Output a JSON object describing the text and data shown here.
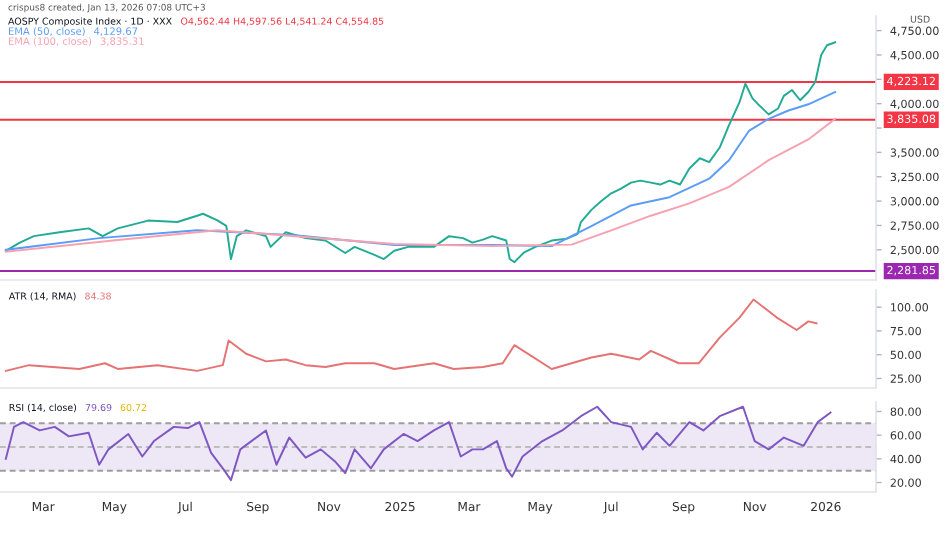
{
  "chart_data": [
    {
      "type": "line",
      "title": "AOSPY Composite Index · 1D · XXX",
      "ylabel": "USD",
      "annotations": [
        "crispus8 created, Jan 13, 2026 07:08 UTC+3",
        "O4,562.44 H4,597.56 L4,541.24 C4,554.85",
        "4,129.67",
        "3,835.31"
      ],
      "xlim": [
        "2024-01-24",
        "2026-02-13"
      ],
      "ylim": [
        2190,
        4900
      ],
      "yticks": [
        {
          "value": 2500,
          "label": "2,500.00"
        },
        {
          "value": 2750,
          "label": "2,750.00"
        },
        {
          "value": 3000,
          "label": "3,000.00"
        },
        {
          "value": 3250,
          "label": "3,250.00"
        },
        {
          "value": 3500,
          "label": "3,500.00"
        },
        {
          "value": 3750,
          "label": null
        },
        {
          "value": 4000,
          "label": "4,000.00"
        },
        {
          "value": 4250,
          "label": null
        },
        {
          "value": 4500,
          "label": "4,500.00"
        },
        {
          "value": 4750,
          "label": "4,750.00"
        }
      ],
      "tick_labels": "y",
      "grid": false,
      "legend": false,
      "ref_lines": [
        {
          "axis": "y",
          "value": 4223.12,
          "label": "4,223.12",
          "color": "#f23645"
        },
        {
          "axis": "y",
          "value": 3835.08,
          "label": "3,835.08",
          "color": "#f23645"
        },
        {
          "axis": "y",
          "value": 2281.85,
          "label": "2,281.85",
          "color": "#9c27b0"
        }
      ],
      "series": [
        {
          "color": "#22ab94",
          "x": [
            "2024-01-29",
            "2024-02-10",
            "2024-02-22",
            "2024-03-15",
            "2024-04-09",
            "2024-04-21",
            "2024-05-04",
            "2024-05-30",
            "2024-06-24",
            "2024-07-11",
            "2024-07-16",
            "2024-07-28",
            "2024-08-05",
            "2024-08-09",
            "2024-08-14",
            "2024-08-22",
            "2024-09-08",
            "2024-09-12",
            "2024-09-25",
            "2024-10-12",
            "2024-10-29",
            "2024-11-15",
            "2024-11-23",
            "2024-12-10",
            "2024-12-18",
            "2024-12-27",
            "2025-01-08",
            "2025-01-18",
            "2025-01-30",
            "2025-02-12",
            "2025-02-24",
            "2025-03-04",
            "2025-03-13",
            "2025-03-21",
            "2025-04-02",
            "2025-04-05",
            "2025-04-09",
            "2025-04-17",
            "2025-04-27",
            "2025-05-11",
            "2025-05-24",
            "2025-06-02",
            "2025-06-05",
            "2025-06-14",
            "2025-06-22",
            "2025-07-01",
            "2025-07-09",
            "2025-07-18",
            "2025-07-26",
            "2025-08-04",
            "2025-08-12",
            "2025-08-20",
            "2025-08-29",
            "2025-09-06",
            "2025-09-15",
            "2025-09-23",
            "2025-10-02",
            "2025-10-10",
            "2025-10-19",
            "2025-10-24",
            "2025-10-30",
            "2025-11-04",
            "2025-11-13",
            "2025-11-21",
            "2025-11-26",
            "2025-12-03",
            "2025-12-10",
            "2025-12-17",
            "2025-12-23",
            "2025-12-28",
            "2026-01-02",
            "2026-01-09"
          ],
          "values": [
            2489,
            2574,
            2640,
            2680,
            2720,
            2640,
            2720,
            2800,
            2785,
            2850,
            2870,
            2805,
            2745,
            2405,
            2640,
            2700,
            2640,
            2530,
            2680,
            2620,
            2595,
            2467,
            2530,
            2447,
            2405,
            2490,
            2530,
            2530,
            2530,
            2640,
            2620,
            2574,
            2605,
            2640,
            2595,
            2405,
            2373,
            2470,
            2530,
            2595,
            2615,
            2660,
            2785,
            2910,
            2995,
            3080,
            3125,
            3190,
            3210,
            3190,
            3170,
            3210,
            3170,
            3335,
            3440,
            3400,
            3550,
            3780,
            4015,
            4205,
            4057,
            3993,
            3890,
            3950,
            4080,
            4140,
            4035,
            4120,
            4225,
            4500,
            4600,
            4630
          ]
        },
        {
          "name": "EMA (50, close)",
          "color": "#5b9cf6",
          "x": [
            "2024-01-29",
            "2024-04-18",
            "2024-07-11",
            "2024-10-03",
            "2024-12-27",
            "2025-03-21",
            "2025-05-11",
            "2025-06-14",
            "2025-07-18",
            "2025-08-20",
            "2025-09-23",
            "2025-10-10",
            "2025-10-27",
            "2025-11-13",
            "2025-11-30",
            "2025-12-17",
            "2026-01-09"
          ],
          "values": [
            2500,
            2620,
            2700,
            2650,
            2550,
            2550,
            2538,
            2743,
            2955,
            3040,
            3230,
            3420,
            3720,
            3845,
            3930,
            3994,
            4120
          ]
        },
        {
          "name": "EMA (100, close)",
          "color": "#f7a1b0",
          "x": [
            "2024-01-29",
            "2024-05-04",
            "2024-07-28",
            "2024-10-03",
            "2024-12-27",
            "2025-03-21",
            "2025-05-28",
            "2025-07-01",
            "2025-08-04",
            "2025-09-06",
            "2025-10-10",
            "2025-11-13",
            "2025-12-17",
            "2026-01-09"
          ],
          "values": [
            2480,
            2600,
            2700,
            2640,
            2560,
            2540,
            2553,
            2700,
            2850,
            2977,
            3146,
            3420,
            3633,
            3845
          ]
        }
      ]
    },
    {
      "type": "line",
      "title": "ATR (14, RMA)",
      "annotations": [
        "84.38"
      ],
      "xlim": [
        "2024-01-24",
        "2026-02-13"
      ],
      "ylim": [
        15,
        118
      ],
      "yticks": [
        {
          "value": 25,
          "label": "25.00"
        },
        {
          "value": 50,
          "label": "50.00"
        },
        {
          "value": 75,
          "label": "75.00"
        },
        {
          "value": 100,
          "label": "100.00"
        }
      ],
      "tick_labels": "y",
      "grid": false,
      "legend": false,
      "series": [
        {
          "color": "#e57373",
          "x": [
            "2024-01-29",
            "2024-02-18",
            "2024-04-01",
            "2024-04-23",
            "2024-05-04",
            "2024-06-07",
            "2024-07-11",
            "2024-08-02",
            "2024-08-07",
            "2024-08-22",
            "2024-09-08",
            "2024-09-25",
            "2024-10-12",
            "2024-10-29",
            "2024-11-15",
            "2024-12-10",
            "2024-12-27",
            "2025-01-30",
            "2025-02-16",
            "2025-03-13",
            "2025-03-30",
            "2025-04-09",
            "2025-05-11",
            "2025-06-14",
            "2025-07-01",
            "2025-07-25",
            "2025-08-04",
            "2025-08-28",
            "2025-09-14",
            "2025-10-02",
            "2025-10-19",
            "2025-10-31",
            "2025-11-20",
            "2025-12-07",
            "2025-12-17",
            "2025-12-24"
          ],
          "values": [
            33,
            39,
            35,
            41,
            35,
            39,
            33,
            39,
            65,
            51,
            43,
            45,
            39,
            37,
            41,
            41,
            35,
            41,
            35,
            37,
            41,
            60,
            35,
            47,
            51,
            45,
            54,
            41,
            41,
            68,
            89,
            108,
            89,
            76,
            85,
            83
          ]
        }
      ]
    },
    {
      "type": "line",
      "title": "RSI (14, close)",
      "annotations": [
        "79.69",
        "60.72"
      ],
      "xlim": [
        "2024-01-24",
        "2026-02-13"
      ],
      "ylim": [
        12,
        88
      ],
      "yticks": [
        {
          "value": 20,
          "label": "20.00"
        },
        {
          "value": 40,
          "label": "40.00"
        },
        {
          "value": 60,
          "label": "60.00"
        },
        {
          "value": 80,
          "label": "80.00"
        }
      ],
      "xticks": [
        {
          "value": "2024-03-01",
          "label": "Mar"
        },
        {
          "value": "2024-05-01",
          "label": "May"
        },
        {
          "value": "2024-07-01",
          "label": "Jul"
        },
        {
          "value": "2024-09-01",
          "label": "Sep"
        },
        {
          "value": "2024-11-01",
          "label": "Nov"
        },
        {
          "value": "2025-01-01",
          "label": "2025"
        },
        {
          "value": "2025-03-01",
          "label": "Mar"
        },
        {
          "value": "2025-05-01",
          "label": "May"
        },
        {
          "value": "2025-07-01",
          "label": "Jul"
        },
        {
          "value": "2025-09-01",
          "label": "Sep"
        },
        {
          "value": "2025-11-01",
          "label": "Nov"
        },
        {
          "value": "2026-01-01",
          "label": "2026"
        }
      ],
      "grid": false,
      "legend": false,
      "bands": [
        {
          "axis": "y",
          "from": 30,
          "to": 70,
          "color": "#ede7f6"
        }
      ],
      "ref_lines": [
        {
          "axis": "y",
          "value": 70,
          "color": "#9e9e9e",
          "line_style": "dashed"
        },
        {
          "axis": "y",
          "value": 50,
          "color": "#bdbdbd",
          "line_style": "dashed"
        },
        {
          "axis": "y",
          "value": 30,
          "color": "#9e9e9e",
          "line_style": "dashed"
        }
      ],
      "series": [
        {
          "color": "#7e57c2",
          "x": [
            "2024-01-29",
            "2024-02-05",
            "2024-02-13",
            "2024-02-27",
            "2024-03-11",
            "2024-03-23",
            "2024-04-09",
            "2024-04-18",
            "2024-04-26",
            "2024-05-13",
            "2024-05-25",
            "2024-06-04",
            "2024-06-21",
            "2024-07-03",
            "2024-07-13",
            "2024-07-23",
            "2024-08-02",
            "2024-08-09",
            "2024-08-17",
            "2024-09-08",
            "2024-09-17",
            "2024-09-28",
            "2024-10-12",
            "2024-10-25",
            "2024-11-06",
            "2024-11-15",
            "2024-11-23",
            "2024-12-07",
            "2024-12-18",
            "2025-01-04",
            "2025-01-16",
            "2025-01-30",
            "2025-02-12",
            "2025-02-22",
            "2025-03-04",
            "2025-03-13",
            "2025-03-25",
            "2025-04-02",
            "2025-04-07",
            "2025-04-16",
            "2025-05-03",
            "2025-05-20",
            "2025-06-05",
            "2025-06-19",
            "2025-07-01",
            "2025-07-18",
            "2025-07-28",
            "2025-08-09",
            "2025-08-20",
            "2025-09-06",
            "2025-09-18",
            "2025-10-02",
            "2025-10-22",
            "2025-11-01",
            "2025-11-13",
            "2025-11-26",
            "2025-12-13",
            "2025-12-25",
            "2026-01-05"
          ],
          "values": [
            40,
            67,
            71,
            64,
            67,
            59,
            62,
            35,
            48,
            61,
            42,
            55,
            67,
            66,
            71,
            45,
            32,
            22,
            48,
            64,
            35,
            58,
            41,
            48,
            38,
            28,
            48,
            32,
            48,
            61,
            55,
            64,
            71,
            42,
            48,
            48,
            55,
            32,
            25,
            42,
            55,
            64,
            76,
            84,
            71,
            67,
            48,
            62,
            51,
            71,
            64,
            76,
            84,
            55,
            48,
            58,
            51,
            71,
            79
          ]
        }
      ]
    }
  ]
}
